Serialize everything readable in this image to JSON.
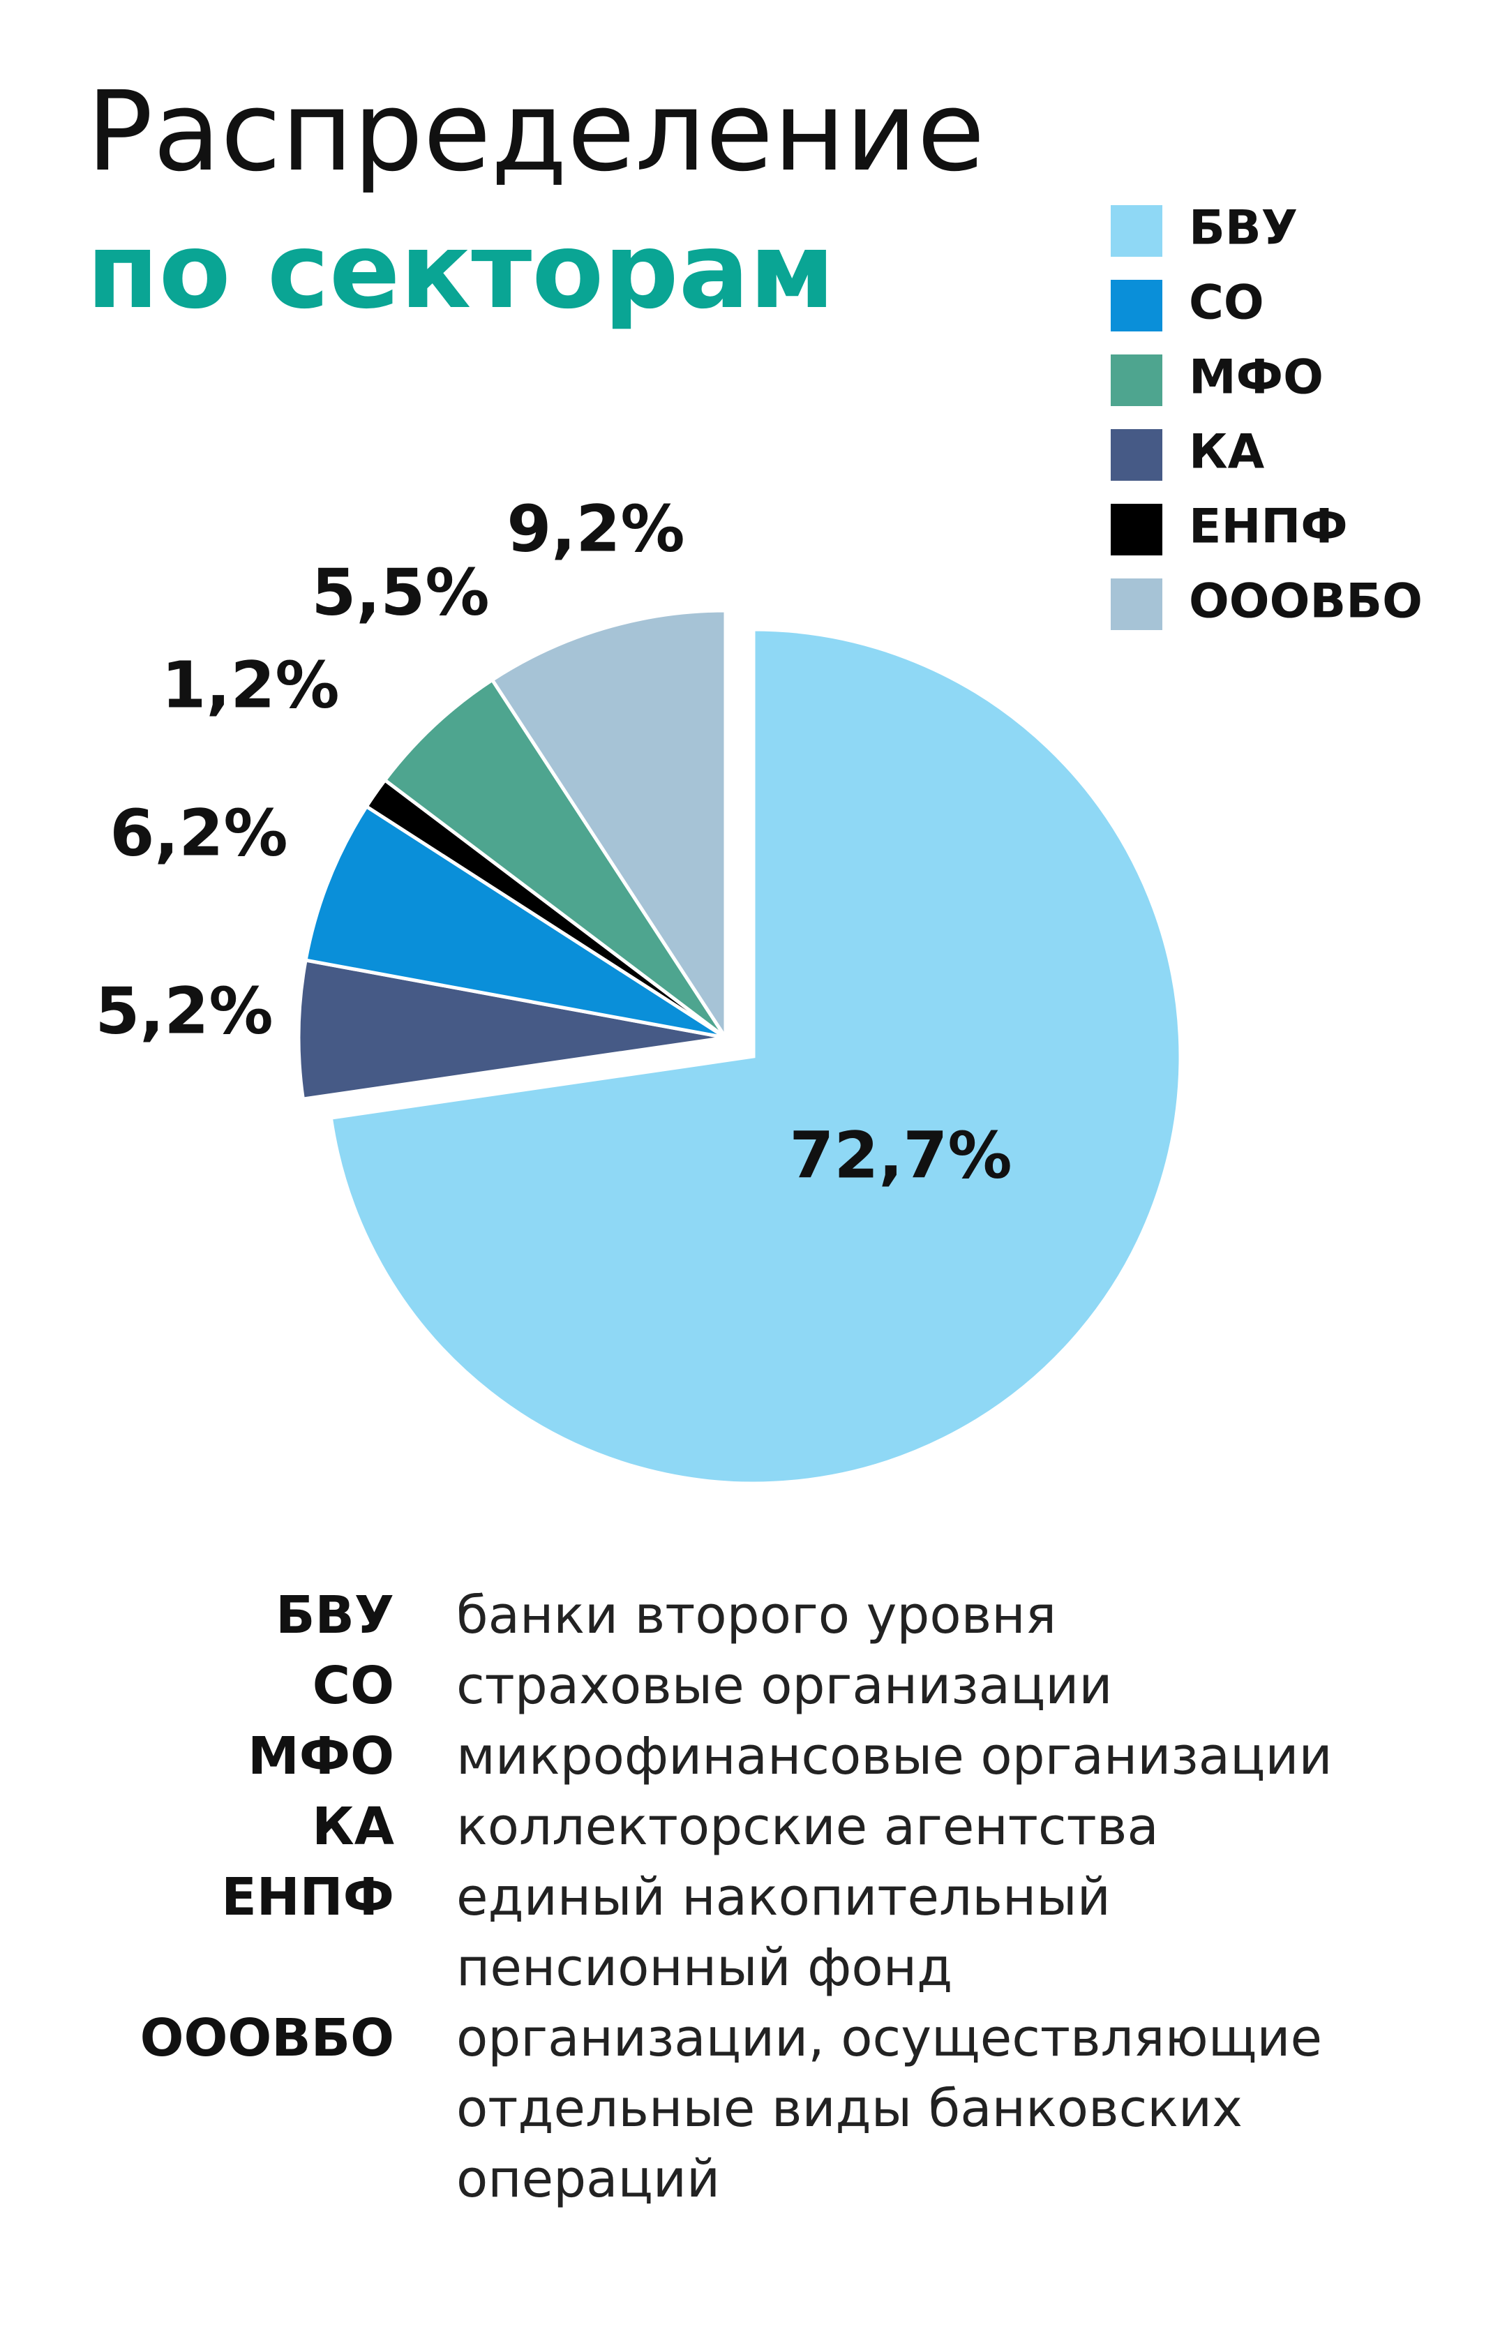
{
  "chart_data": {
    "type": "pie",
    "title": "Распределение",
    "subtitle": "по секторам",
    "categories": [
      "БВУ",
      "СО",
      "МФО",
      "КА",
      "ЕНПФ",
      "ОООВБО"
    ],
    "values": [
      72.7,
      6.2,
      5.5,
      5.2,
      1.2,
      9.2
    ],
    "value_labels": [
      "72,7%",
      "6,2%",
      "5,5%",
      "5,2%",
      "1,2%",
      "9,2%"
    ],
    "colors": [
      "#8fd8f5",
      "#0a8fd9",
      "#4ea58f",
      "#465a86",
      "#000000",
      "#a6c3d6"
    ],
    "legend": "top-right"
  },
  "glossary": [
    {
      "abbr": "БВУ",
      "lines": [
        "банки второго уровня"
      ]
    },
    {
      "abbr": "СО",
      "lines": [
        "страховые организации"
      ]
    },
    {
      "abbr": "МФО",
      "lines": [
        "микрофинансовые организации"
      ]
    },
    {
      "abbr": "КА",
      "lines": [
        "коллекторские агентства"
      ]
    },
    {
      "abbr": "ЕНПФ",
      "lines": [
        "единый накопительный",
        "пенсионный фонд"
      ]
    },
    {
      "abbr": "ОООВБО",
      "lines": [
        "организации, осуществляющие",
        "отдельные виды банковских",
        "операций"
      ]
    }
  ]
}
